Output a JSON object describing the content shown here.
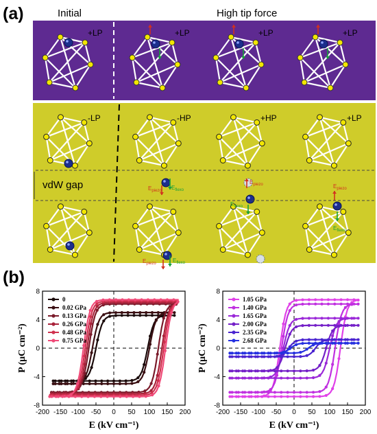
{
  "figure": {
    "panel_a_label": "(a)",
    "panel_b_label": "(b)",
    "header_initial": "Initial",
    "header_high_force": "High tip force",
    "vdw_label": "vdW gap",
    "top_row_polarizations": [
      "+LP",
      "+LP",
      "+LP",
      "+LP"
    ],
    "bottom_row_polarizations": [
      "-LP",
      "-HP",
      "+HP",
      "+LP"
    ],
    "e_piezo": "E",
    "e_piezo_sub": "piezo",
    "e_flexo": "E",
    "e_flexo_sub": "flexo",
    "colors": {
      "top_band": "#5e2a91",
      "bottom_band": "#cfcc2a",
      "bond": "#ffffff",
      "atom": "#f2e600",
      "cation": "#1c2e8c",
      "e_piezo": "#d2301e",
      "e_flexo": "#17a03a"
    }
  },
  "chart_data": [
    {
      "type": "line",
      "xlabel": "E (kV cm⁻¹)",
      "ylabel": "P (μC cm⁻²)",
      "xlim": [
        -200,
        200
      ],
      "ylim": [
        -8,
        8
      ],
      "xticks": [
        -200,
        -150,
        -100,
        -50,
        0,
        50,
        100,
        150,
        200
      ],
      "yticks": [
        -8,
        -4,
        0,
        4,
        8
      ],
      "legend_position": "top-left",
      "series": [
        {
          "name": "0",
          "color": "#1a0a0a",
          "Ec_neg": -50,
          "Ec_pos": 95,
          "Ps": 4.6,
          "Emax": 170
        },
        {
          "name": "0.02 GPa",
          "color": "#3a0f12",
          "Ec_neg": -60,
          "Ec_pos": 100,
          "Ps": 5.0,
          "Emax": 170
        },
        {
          "name": "0.13 GPa",
          "color": "#7a1a2a",
          "Ec_neg": -70,
          "Ec_pos": 125,
          "Ps": 6.2,
          "Emax": 175
        },
        {
          "name": "0.26 GPa",
          "color": "#a8223a",
          "Ec_neg": -75,
          "Ec_pos": 135,
          "Ps": 6.4,
          "Emax": 175
        },
        {
          "name": "0.48 GPa",
          "color": "#d0304e",
          "Ec_neg": -80,
          "Ec_pos": 140,
          "Ps": 6.6,
          "Emax": 178
        },
        {
          "name": "0.75 GPa",
          "color": "#f04a78",
          "Ec_neg": -85,
          "Ec_pos": 145,
          "Ps": 6.8,
          "Emax": 180
        }
      ]
    },
    {
      "type": "line",
      "xlabel": "E (kV cm⁻¹)",
      "ylabel": "P (μC cm⁻²)",
      "xlim": [
        -200,
        200
      ],
      "ylim": [
        -8,
        8
      ],
      "xticks": [
        -200,
        -150,
        -100,
        -50,
        0,
        50,
        100,
        150,
        200
      ],
      "yticks": [
        -8,
        -4,
        0,
        4,
        8
      ],
      "legend_position": "top-left",
      "series": [
        {
          "name": "1.05 GPa",
          "color": "#e040e8",
          "Ec_neg": -40,
          "Ec_pos": 130,
          "Ps": 6.8,
          "Emax": 180
        },
        {
          "name": "1.40 GPa",
          "color": "#c030e0",
          "Ec_neg": -35,
          "Ec_pos": 115,
          "Ps": 6.2,
          "Emax": 180
        },
        {
          "name": "1.65 GPa",
          "color": "#9a28d8",
          "Ec_neg": -30,
          "Ec_pos": 100,
          "Ps": 4.2,
          "Emax": 180
        },
        {
          "name": "2.00 GPa",
          "color": "#7420c8",
          "Ec_neg": -25,
          "Ec_pos": 90,
          "Ps": 3.2,
          "Emax": 180
        },
        {
          "name": "2.35 GPa",
          "color": "#4a24d0",
          "Ec_neg": -15,
          "Ec_pos": 60,
          "Ps": 1.2,
          "Emax": 180
        },
        {
          "name": "2.68 GPa",
          "color": "#2430e0",
          "Ec_neg": -10,
          "Ec_pos": 40,
          "Ps": 0.7,
          "Emax": 180
        }
      ]
    }
  ]
}
